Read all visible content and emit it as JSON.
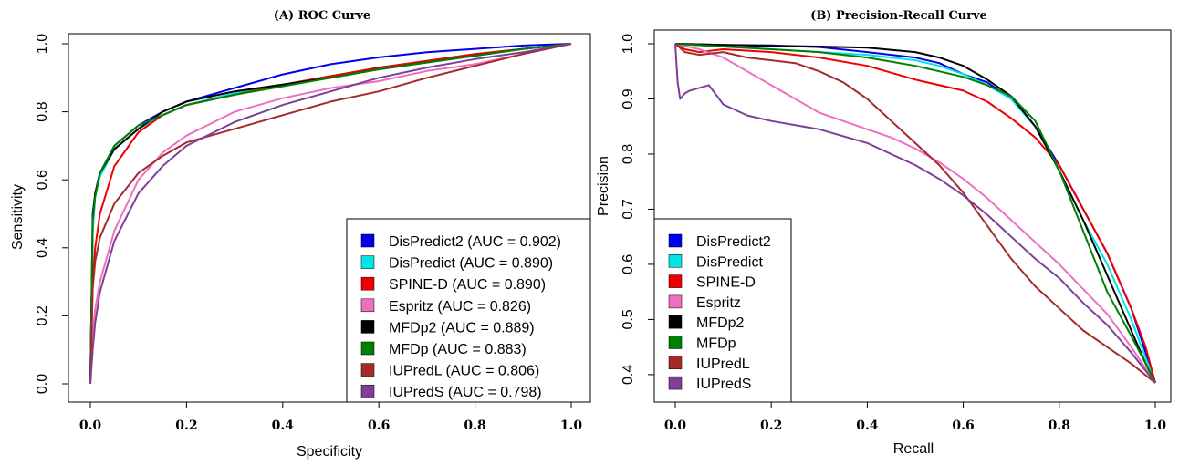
{
  "chart_data": [
    {
      "panel": "roc",
      "type": "line",
      "title": "(A) ROC Curve",
      "xlabel": "Specificity",
      "ylabel": "Sensitivity",
      "xlim": [
        0,
        1
      ],
      "ylim": [
        0,
        1
      ],
      "xticks": [
        "0.0",
        "0.2",
        "0.4",
        "0.6",
        "0.8",
        "1.0"
      ],
      "yticks": [
        "0.0",
        "0.2",
        "0.4",
        "0.6",
        "0.8",
        "1.0"
      ],
      "grid": false,
      "legend_position": "bottom-right",
      "series": [
        {
          "name": "DisPredict2 (AUC = 0.902)",
          "color": "#0000ee",
          "x": [
            0,
            0.005,
            0.01,
            0.02,
            0.05,
            0.1,
            0.15,
            0.2,
            0.3,
            0.4,
            0.5,
            0.6,
            0.7,
            0.8,
            0.9,
            1.0
          ],
          "y": [
            0,
            0.45,
            0.56,
            0.62,
            0.7,
            0.76,
            0.8,
            0.83,
            0.87,
            0.91,
            0.94,
            0.96,
            0.975,
            0.985,
            0.995,
            1.0
          ]
        },
        {
          "name": "DisPredict (AUC = 0.890)",
          "color": "#00e5e5",
          "x": [
            0,
            0.005,
            0.01,
            0.02,
            0.05,
            0.1,
            0.15,
            0.2,
            0.3,
            0.4,
            0.5,
            0.6,
            0.7,
            0.8,
            0.9,
            1.0
          ],
          "y": [
            0,
            0.45,
            0.55,
            0.61,
            0.69,
            0.75,
            0.79,
            0.82,
            0.855,
            0.88,
            0.905,
            0.93,
            0.95,
            0.97,
            0.985,
            1.0
          ]
        },
        {
          "name": "SPINE-D (AUC = 0.890)",
          "color": "#ee0000",
          "x": [
            0,
            0.005,
            0.01,
            0.02,
            0.05,
            0.1,
            0.15,
            0.2,
            0.3,
            0.4,
            0.5,
            0.6,
            0.7,
            0.8,
            0.9,
            1.0
          ],
          "y": [
            0,
            0.3,
            0.4,
            0.5,
            0.64,
            0.74,
            0.79,
            0.82,
            0.85,
            0.88,
            0.905,
            0.93,
            0.95,
            0.97,
            0.985,
            1.0
          ]
        },
        {
          "name": "Espritz (AUC = 0.826)",
          "color": "#ee6fc0",
          "x": [
            0,
            0.005,
            0.01,
            0.02,
            0.05,
            0.1,
            0.15,
            0.2,
            0.3,
            0.4,
            0.5,
            0.6,
            0.7,
            0.8,
            0.9,
            1.0
          ],
          "y": [
            0,
            0.15,
            0.22,
            0.3,
            0.45,
            0.6,
            0.68,
            0.73,
            0.8,
            0.84,
            0.87,
            0.89,
            0.92,
            0.94,
            0.97,
            1.0
          ]
        },
        {
          "name": "MFDp2 (AUC = 0.889)",
          "color": "#000000",
          "x": [
            0,
            0.005,
            0.01,
            0.02,
            0.05,
            0.1,
            0.15,
            0.2,
            0.3,
            0.4,
            0.5,
            0.6,
            0.7,
            0.8,
            0.9,
            1.0
          ],
          "y": [
            0,
            0.5,
            0.56,
            0.62,
            0.69,
            0.75,
            0.8,
            0.83,
            0.86,
            0.88,
            0.9,
            0.925,
            0.945,
            0.965,
            0.985,
            1.0
          ]
        },
        {
          "name": "MFDp (AUC = 0.883)",
          "color": "#008000",
          "x": [
            0,
            0.005,
            0.01,
            0.02,
            0.05,
            0.1,
            0.15,
            0.2,
            0.3,
            0.4,
            0.5,
            0.6,
            0.7,
            0.8,
            0.9,
            1.0
          ],
          "y": [
            0,
            0.48,
            0.55,
            0.62,
            0.7,
            0.76,
            0.79,
            0.82,
            0.85,
            0.875,
            0.9,
            0.925,
            0.945,
            0.965,
            0.985,
            1.0
          ]
        },
        {
          "name": "IUPredL (AUC = 0.806)",
          "color": "#a52a2a",
          "x": [
            0,
            0.005,
            0.01,
            0.02,
            0.05,
            0.1,
            0.15,
            0.2,
            0.3,
            0.4,
            0.5,
            0.6,
            0.7,
            0.8,
            0.9,
            1.0
          ],
          "y": [
            0,
            0.28,
            0.36,
            0.43,
            0.53,
            0.62,
            0.67,
            0.71,
            0.75,
            0.79,
            0.83,
            0.86,
            0.9,
            0.935,
            0.97,
            1.0
          ]
        },
        {
          "name": "IUPredS (AUC = 0.798)",
          "color": "#7f3f98",
          "x": [
            0,
            0.005,
            0.01,
            0.02,
            0.05,
            0.1,
            0.15,
            0.2,
            0.3,
            0.4,
            0.5,
            0.6,
            0.7,
            0.8,
            0.9,
            1.0
          ],
          "y": [
            0,
            0.1,
            0.18,
            0.27,
            0.42,
            0.56,
            0.64,
            0.7,
            0.77,
            0.82,
            0.86,
            0.9,
            0.93,
            0.955,
            0.975,
            1.0
          ]
        }
      ]
    },
    {
      "panel": "pr",
      "type": "line",
      "title": "(B) Precision-Recall Curve",
      "xlabel": "Recall",
      "ylabel": "Precision",
      "xlim": [
        0,
        1
      ],
      "ylim": [
        0.38,
        1
      ],
      "xticks": [
        "0.0",
        "0.2",
        "0.4",
        "0.6",
        "0.8",
        "1.0"
      ],
      "yticks": [
        "0.4",
        "0.5",
        "0.6",
        "0.7",
        "0.8",
        "0.9",
        "1.0"
      ],
      "grid": false,
      "legend_position": "bottom-left",
      "series": [
        {
          "name": "DisPredict2",
          "color": "#0000ee",
          "x": [
            0,
            0.1,
            0.2,
            0.3,
            0.4,
            0.5,
            0.55,
            0.6,
            0.65,
            0.7,
            0.75,
            0.8,
            0.85,
            0.9,
            0.95,
            0.98,
            1.0
          ],
          "y": [
            1.0,
            0.998,
            0.997,
            0.994,
            0.985,
            0.975,
            0.965,
            0.945,
            0.93,
            0.9,
            0.85,
            0.78,
            0.7,
            0.62,
            0.52,
            0.44,
            0.385
          ]
        },
        {
          "name": "DisPredict",
          "color": "#00e5e5",
          "x": [
            0,
            0.1,
            0.2,
            0.3,
            0.4,
            0.5,
            0.55,
            0.6,
            0.65,
            0.7,
            0.75,
            0.8,
            0.85,
            0.9,
            0.95,
            0.98,
            1.0
          ],
          "y": [
            1.0,
            0.995,
            0.99,
            0.985,
            0.98,
            0.97,
            0.96,
            0.945,
            0.925,
            0.9,
            0.85,
            0.77,
            0.68,
            0.6,
            0.5,
            0.43,
            0.385
          ]
        },
        {
          "name": "SPINE-D",
          "color": "#ee0000",
          "x": [
            0,
            0.02,
            0.05,
            0.1,
            0.2,
            0.3,
            0.4,
            0.5,
            0.55,
            0.6,
            0.65,
            0.7,
            0.75,
            0.8,
            0.85,
            0.9,
            0.95,
            0.98,
            1.0
          ],
          "y": [
            1.0,
            0.99,
            0.985,
            0.99,
            0.985,
            0.975,
            0.96,
            0.935,
            0.925,
            0.915,
            0.895,
            0.865,
            0.83,
            0.78,
            0.7,
            0.62,
            0.52,
            0.45,
            0.385
          ]
        },
        {
          "name": "Espritz",
          "color": "#ee6fc0",
          "x": [
            0,
            0.05,
            0.1,
            0.15,
            0.2,
            0.25,
            0.3,
            0.35,
            0.4,
            0.45,
            0.5,
            0.55,
            0.6,
            0.65,
            0.7,
            0.75,
            0.8,
            0.85,
            0.9,
            0.95,
            1.0
          ],
          "y": [
            1.0,
            0.99,
            0.975,
            0.95,
            0.925,
            0.9,
            0.875,
            0.86,
            0.845,
            0.83,
            0.81,
            0.785,
            0.755,
            0.72,
            0.68,
            0.64,
            0.6,
            0.555,
            0.51,
            0.45,
            0.385
          ]
        },
        {
          "name": "MFDp2",
          "color": "#000000",
          "x": [
            0,
            0.1,
            0.2,
            0.3,
            0.4,
            0.5,
            0.55,
            0.6,
            0.65,
            0.7,
            0.75,
            0.8,
            0.85,
            0.9,
            0.95,
            0.98,
            1.0
          ],
          "y": [
            1.0,
            0.998,
            0.996,
            0.995,
            0.993,
            0.985,
            0.975,
            0.96,
            0.935,
            0.905,
            0.85,
            0.77,
            0.68,
            0.58,
            0.48,
            0.42,
            0.385
          ]
        },
        {
          "name": "MFDp",
          "color": "#008000",
          "x": [
            0,
            0.1,
            0.2,
            0.3,
            0.4,
            0.5,
            0.55,
            0.6,
            0.65,
            0.7,
            0.75,
            0.8,
            0.85,
            0.9,
            0.95,
            0.98,
            1.0
          ],
          "y": [
            1.0,
            0.995,
            0.99,
            0.985,
            0.975,
            0.96,
            0.95,
            0.94,
            0.925,
            0.905,
            0.86,
            0.77,
            0.66,
            0.55,
            0.47,
            0.42,
            0.385
          ]
        },
        {
          "name": "IUPredL",
          "color": "#a52a2a",
          "x": [
            0,
            0.02,
            0.05,
            0.1,
            0.15,
            0.2,
            0.25,
            0.3,
            0.35,
            0.4,
            0.45,
            0.5,
            0.55,
            0.6,
            0.65,
            0.7,
            0.75,
            0.8,
            0.85,
            0.9,
            0.95,
            1.0
          ],
          "y": [
            1.0,
            0.985,
            0.98,
            0.985,
            0.975,
            0.97,
            0.965,
            0.95,
            0.93,
            0.9,
            0.86,
            0.82,
            0.78,
            0.73,
            0.67,
            0.61,
            0.56,
            0.52,
            0.48,
            0.45,
            0.42,
            0.385
          ]
        },
        {
          "name": "IUPredS",
          "color": "#7f3f98",
          "x": [
            0,
            0.005,
            0.01,
            0.02,
            0.03,
            0.05,
            0.07,
            0.1,
            0.15,
            0.2,
            0.3,
            0.4,
            0.5,
            0.55,
            0.6,
            0.65,
            0.7,
            0.75,
            0.8,
            0.85,
            0.9,
            0.95,
            1.0
          ],
          "y": [
            1.0,
            0.93,
            0.9,
            0.91,
            0.915,
            0.92,
            0.925,
            0.89,
            0.87,
            0.86,
            0.845,
            0.82,
            0.78,
            0.755,
            0.725,
            0.69,
            0.65,
            0.61,
            0.575,
            0.53,
            0.49,
            0.44,
            0.385
          ]
        }
      ]
    }
  ]
}
